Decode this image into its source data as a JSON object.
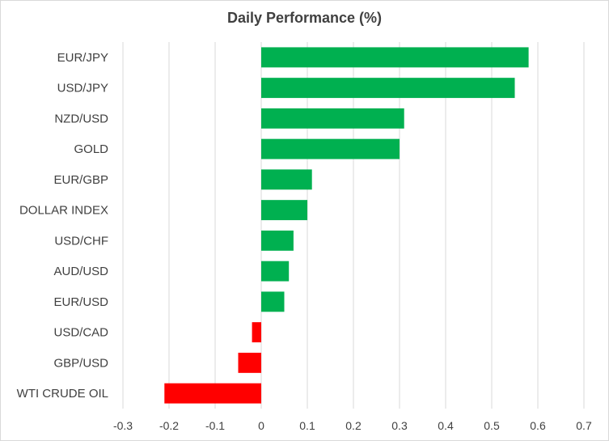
{
  "chart_data": {
    "type": "bar",
    "orientation": "horizontal",
    "title": "Daily Performance  (%)",
    "xlabel": "",
    "ylabel": "",
    "xlim": [
      -0.3,
      0.7
    ],
    "xticks": [
      -0.3,
      -0.2,
      -0.1,
      0,
      0.1,
      0.2,
      0.3,
      0.4,
      0.5,
      0.6,
      0.7
    ],
    "xtick_labels": [
      "-0.3",
      "-0.2",
      "-0.1",
      "0",
      "0.1",
      "0.2",
      "0.3",
      "0.4",
      "0.5",
      "0.6",
      "0.7"
    ],
    "grid": true,
    "categories": [
      "EUR/JPY",
      "USD/JPY",
      "NZD/USD",
      "GOLD",
      "EUR/GBP",
      "DOLLAR INDEX",
      "USD/CHF",
      "AUD/USD",
      "EUR/USD",
      "USD/CAD",
      "GBP/USD",
      "WTI CRUDE OIL"
    ],
    "values": [
      0.58,
      0.55,
      0.31,
      0.3,
      0.11,
      0.1,
      0.07,
      0.06,
      0.05,
      -0.02,
      -0.05,
      -0.21
    ],
    "colors": {
      "positive": "#00b050",
      "negative": "#ff0000",
      "grid": "#d9d9d9",
      "text": "#404040"
    }
  }
}
